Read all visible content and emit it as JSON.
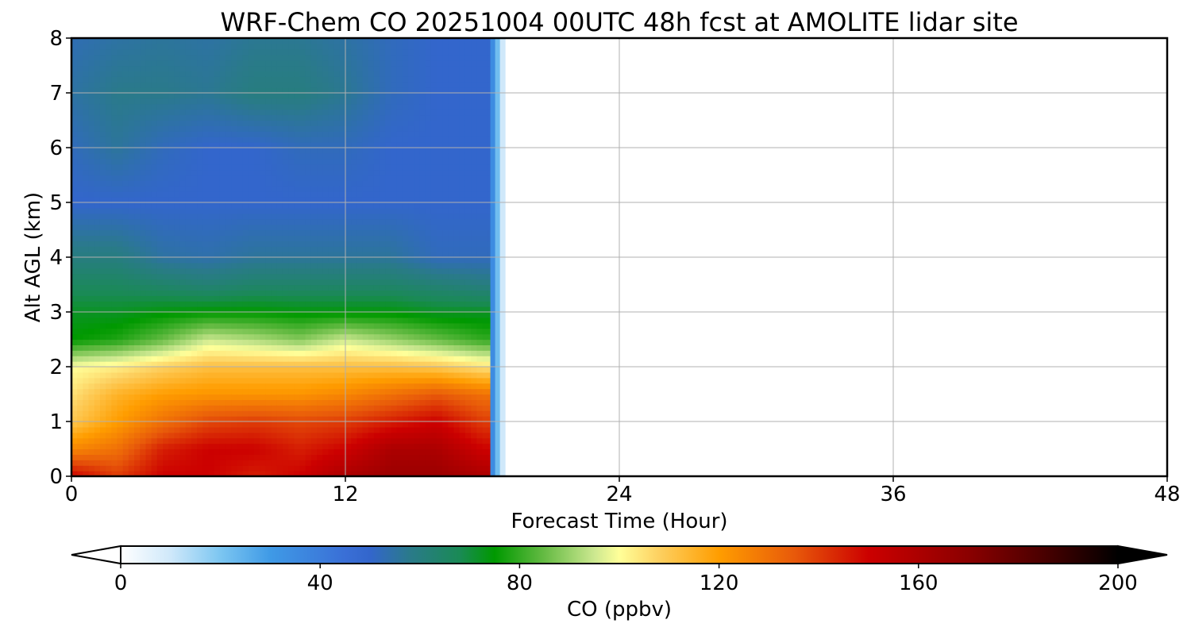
{
  "chart_data": {
    "type": "heatmap",
    "title": "WRF-Chem CO  20251004 00UTC 48h fcst at AMOLITE lidar site",
    "xlabel": "Forecast Time (Hour)",
    "ylabel": "Alt AGL (km)",
    "xlim": [
      0,
      48
    ],
    "ylim": [
      0,
      8
    ],
    "x_ticks": [
      "0",
      "12",
      "24",
      "36",
      "48"
    ],
    "y_ticks": [
      "0",
      "1",
      "2",
      "3",
      "4",
      "5",
      "6",
      "7",
      "8"
    ],
    "grid": true,
    "data_extent_hours": [
      0,
      18.5
    ],
    "x_hours": [
      0,
      2,
      4,
      6,
      8,
      10,
      12,
      14,
      16,
      18
    ],
    "altitude_km": [
      0,
      0.5,
      1,
      1.5,
      2,
      2.5,
      3,
      3.5,
      4,
      5,
      6,
      7,
      8
    ],
    "values_ppbv": [
      [
        150,
        140,
        150,
        150,
        145,
        150,
        160,
        165,
        165,
        160
      ],
      [
        125,
        130,
        145,
        150,
        150,
        145,
        150,
        160,
        160,
        150
      ],
      [
        110,
        120,
        130,
        138,
        140,
        138,
        140,
        145,
        150,
        140
      ],
      [
        105,
        115,
        120,
        122,
        122,
        122,
        125,
        130,
        135,
        130
      ],
      [
        100,
        103,
        108,
        112,
        112,
        112,
        112,
        112,
        110,
        105
      ],
      [
        75,
        78,
        85,
        95,
        92,
        88,
        95,
        90,
        85,
        80
      ],
      [
        72,
        72,
        74,
        75,
        75,
        74,
        74,
        74,
        72,
        72
      ],
      [
        66,
        66,
        64,
        62,
        64,
        64,
        64,
        64,
        62,
        60
      ],
      [
        60,
        60,
        55,
        54,
        56,
        56,
        56,
        56,
        52,
        52
      ],
      [
        50,
        50,
        50,
        50,
        50,
        50,
        50,
        50,
        50,
        50
      ],
      [
        52,
        56,
        52,
        50,
        50,
        52,
        52,
        50,
        50,
        50
      ],
      [
        55,
        58,
        58,
        57,
        60,
        60,
        57,
        52,
        50,
        50
      ],
      [
        53,
        55,
        56,
        55,
        57,
        57,
        55,
        52,
        50,
        50
      ]
    ],
    "colorbar": {
      "label": "CO  (ppbv)",
      "min": 0,
      "max": 200,
      "ticks": [
        "0",
        "40",
        "80",
        "120",
        "160",
        "200"
      ],
      "extend": "both",
      "color_stops": [
        [
          0,
          "#ffffff"
        ],
        [
          10,
          "#cfe8fa"
        ],
        [
          20,
          "#7cc6f1"
        ],
        [
          30,
          "#3f9ae6"
        ],
        [
          45,
          "#3a6fd6"
        ],
        [
          50,
          "#3366cc"
        ],
        [
          58,
          "#2a7a8a"
        ],
        [
          68,
          "#1a8a55"
        ],
        [
          75,
          "#009900"
        ],
        [
          85,
          "#66bb44"
        ],
        [
          95,
          "#cce890"
        ],
        [
          100,
          "#ffff99"
        ],
        [
          108,
          "#fdd060"
        ],
        [
          120,
          "#ff9d00"
        ],
        [
          135,
          "#e85a0a"
        ],
        [
          150,
          "#cc0000"
        ],
        [
          170,
          "#8b0000"
        ],
        [
          185,
          "#4a0000"
        ],
        [
          200,
          "#000000"
        ]
      ]
    }
  }
}
